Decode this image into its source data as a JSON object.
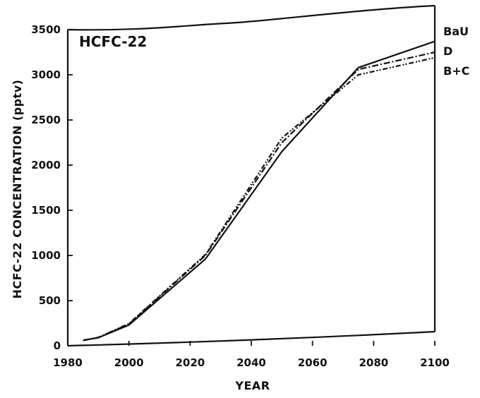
{
  "chart_data": {
    "type": "line",
    "title": "HCFC-22",
    "xlabel": "YEAR",
    "ylabel": "HCFC-22  CONCENTRATION  (pptv)",
    "xlim": [
      1980,
      2100
    ],
    "ylim": [
      0,
      3500
    ],
    "xticks": [
      1980,
      2000,
      2020,
      2040,
      2060,
      2080,
      2100
    ],
    "yticks": [
      0,
      500,
      1000,
      1500,
      2000,
      2500,
      3000,
      3500
    ],
    "grid": false,
    "legend_position": "right",
    "series": [
      {
        "name": "BaU",
        "style": "solid",
        "x": [
          1985,
          1990,
          2000,
          2025,
          2050,
          2075,
          2100
        ],
        "y": [
          60,
          90,
          230,
          960,
          2150,
          3080,
          3370
        ]
      },
      {
        "name": "D",
        "style": "dash-dot",
        "x": [
          1985,
          1990,
          2000,
          2025,
          2050,
          2075,
          2100
        ],
        "y": [
          60,
          92,
          240,
          1000,
          2250,
          3060,
          3250
        ]
      },
      {
        "name": "B+C",
        "style": "dash-dot-dot",
        "x": [
          1985,
          1990,
          2000,
          2025,
          2050,
          2075,
          2100
        ],
        "y": [
          60,
          92,
          245,
          1010,
          2300,
          3000,
          3190
        ]
      }
    ]
  }
}
